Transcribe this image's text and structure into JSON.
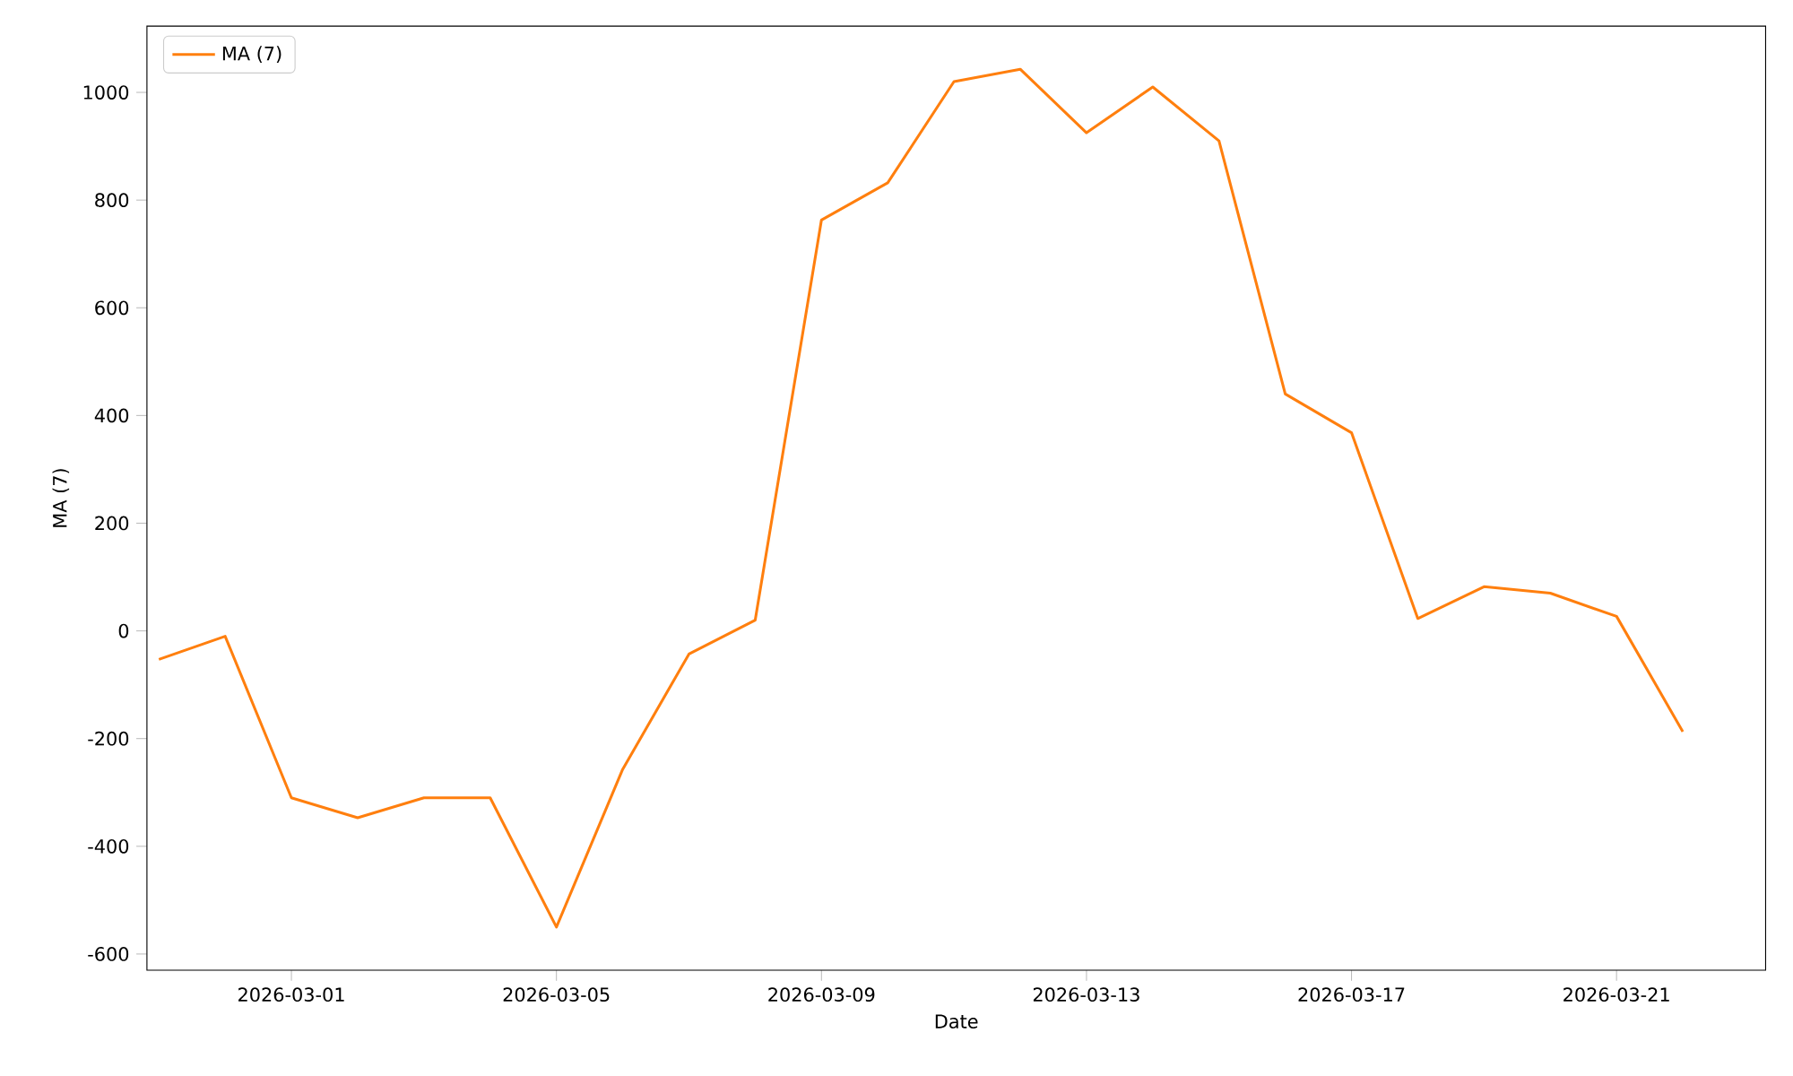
{
  "chart_data": {
    "type": "line",
    "xlabel": "Date",
    "ylabel": "MA (7)",
    "x": [
      "2026-02-27",
      "2026-02-28",
      "2026-03-01",
      "2026-03-02",
      "2026-03-03",
      "2026-03-04",
      "2026-03-05",
      "2026-03-06",
      "2026-03-07",
      "2026-03-08",
      "2026-03-09",
      "2026-03-10",
      "2026-03-11",
      "2026-03-12",
      "2026-03-13",
      "2026-03-14",
      "2026-03-15",
      "2026-03-16",
      "2026-03-17",
      "2026-03-18",
      "2026-03-19",
      "2026-03-20",
      "2026-03-21",
      "2026-03-22"
    ],
    "series": [
      {
        "name": "MA (7)",
        "color": "#ff7f0e",
        "values": [
          -53,
          -10,
          -310,
          -347,
          -310,
          -310,
          -550,
          -257,
          -43,
          20,
          763,
          832,
          1020,
          1043,
          925,
          1010,
          910,
          440,
          368,
          23,
          82,
          70,
          27,
          -187
        ]
      }
    ],
    "xlim": [
      "2026-02-26T19:40",
      "2026-03-23T06:00"
    ],
    "xticks": [
      "2026-03-01",
      "2026-03-05",
      "2026-03-09",
      "2026-03-13",
      "2026-03-17",
      "2026-03-21"
    ],
    "ylim": [
      -630,
      1123
    ],
    "yticks": [
      -600,
      -400,
      -200,
      0,
      200,
      400,
      600,
      800,
      1000
    ],
    "legend": "top left",
    "grid": false,
    "marker": "none",
    "line_style": "solid"
  }
}
